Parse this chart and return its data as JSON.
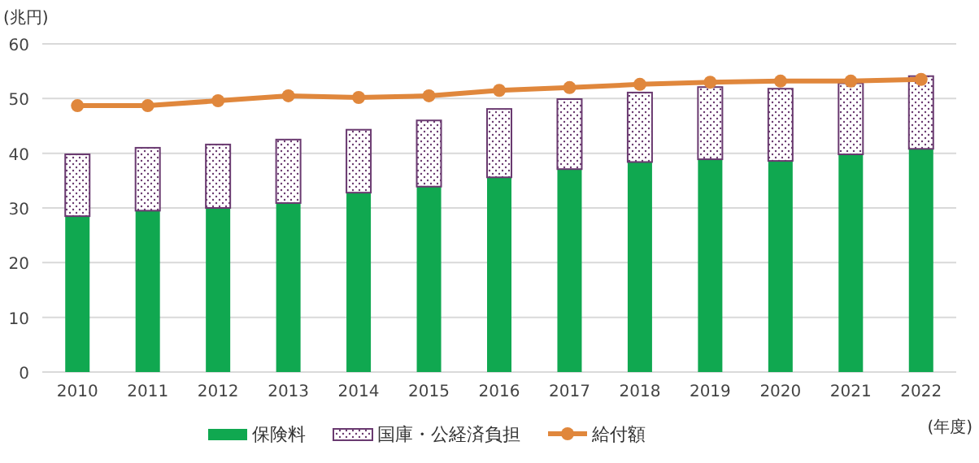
{
  "chart_data": {
    "type": "bar",
    "stacked": true,
    "ylabel": "(兆円)",
    "xlabel": "(年度)",
    "categories": [
      "2010",
      "2011",
      "2012",
      "2013",
      "2014",
      "2015",
      "2016",
      "2017",
      "2018",
      "2019",
      "2020",
      "2021",
      "2022"
    ],
    "series": [
      {
        "name": "保険料",
        "color": "#10a850",
        "values": [
          28.5,
          29.5,
          30.0,
          30.9,
          32.8,
          33.9,
          35.6,
          37.1,
          38.4,
          38.9,
          38.6,
          39.8,
          40.8
        ]
      },
      {
        "name": "国庫・公経済負担",
        "color": "#6a3a70",
        "values": [
          11.3,
          11.5,
          11.6,
          11.6,
          11.5,
          12.1,
          12.5,
          12.8,
          12.7,
          13.2,
          13.2,
          13.0,
          13.3
        ]
      },
      {
        "name": "給付額",
        "type": "line",
        "color": "#e0873c",
        "values": [
          48.7,
          48.7,
          49.6,
          50.5,
          50.2,
          50.5,
          51.5,
          52.0,
          52.6,
          53.0,
          53.2,
          53.2,
          53.5
        ]
      }
    ],
    "ylim": [
      0,
      60
    ],
    "yticks": [
      0,
      10,
      20,
      30,
      40,
      50,
      60
    ],
    "grid": "y",
    "legend": "bottom",
    "marker": "circle"
  }
}
